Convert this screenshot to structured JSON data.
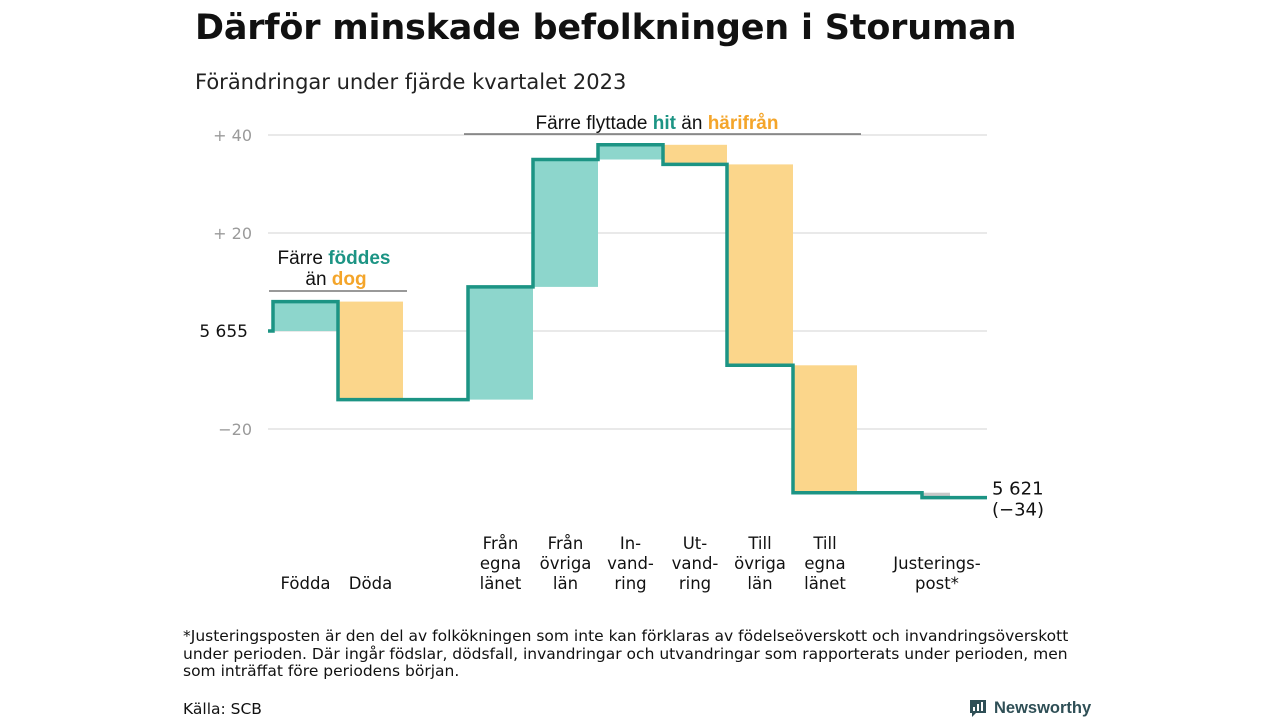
{
  "title": "Därför minskade befolkningen i Storuman",
  "subtitle": "Förändringar under fjärde kvartalet 2023",
  "colors": {
    "teal_line": "#1c9484",
    "teal_fill": "#8dd6cc",
    "orange_fill": "#fbd68b",
    "orange_text": "#f4a52a",
    "grey_fill": "#c8c8c8",
    "grid": "#dcdcdc",
    "axis_text": "#9a9a9a"
  },
  "chart_data": {
    "type": "waterfall",
    "start_value": 5655,
    "start_label": "5 655",
    "end_label": "5 621",
    "end_change_label": "(−34)",
    "yticks": [
      {
        "value": 40,
        "label": "+ 40"
      },
      {
        "value": 20,
        "label": "+ 20"
      },
      {
        "value": -20,
        "label": "−20"
      }
    ],
    "ylim": [
      -37,
      44
    ],
    "steps": [
      {
        "label": [
          "Födda"
        ],
        "change": 6,
        "kind": "in"
      },
      {
        "label": [
          "Döda"
        ],
        "change": -20,
        "kind": "out"
      },
      {
        "label": [
          "Från",
          "egna",
          "länet"
        ],
        "change": 23,
        "kind": "in"
      },
      {
        "label": [
          "Från",
          "övriga",
          "län"
        ],
        "change": 26,
        "kind": "in"
      },
      {
        "label": [
          "In-",
          "vand-",
          "ring"
        ],
        "change": 3,
        "kind": "in"
      },
      {
        "label": [
          "Ut-",
          "vand-",
          "ring"
        ],
        "change": -4,
        "kind": "out"
      },
      {
        "label": [
          "Till",
          "övriga",
          "län"
        ],
        "change": -41,
        "kind": "out"
      },
      {
        "label": [
          "Till",
          "egna",
          "länet"
        ],
        "change": -26,
        "kind": "out"
      },
      {
        "label": [
          "Justerings-",
          "post*"
        ],
        "change": -1,
        "kind": "adj"
      }
    ],
    "annotations": [
      {
        "id": "births",
        "line1": "Färre",
        "hl1": "föddes",
        "line2": "än",
        "hl2": "dog"
      },
      {
        "id": "moves",
        "text": "Färre flyttade",
        "hl1": "hit",
        "mid": "än",
        "hl2": "härifrån"
      }
    ]
  },
  "footnote": "*Justeringsposten är den del av folkökningen som inte kan förklaras av födelseöverskott och invandringsöverskott under perioden. Där ingår födslar, dödsfall, invandringar och utvandringar som rapporterats under perioden, men som inträffat före periodens början.",
  "source": "Källa: SCB",
  "brand": "Newsworthy"
}
